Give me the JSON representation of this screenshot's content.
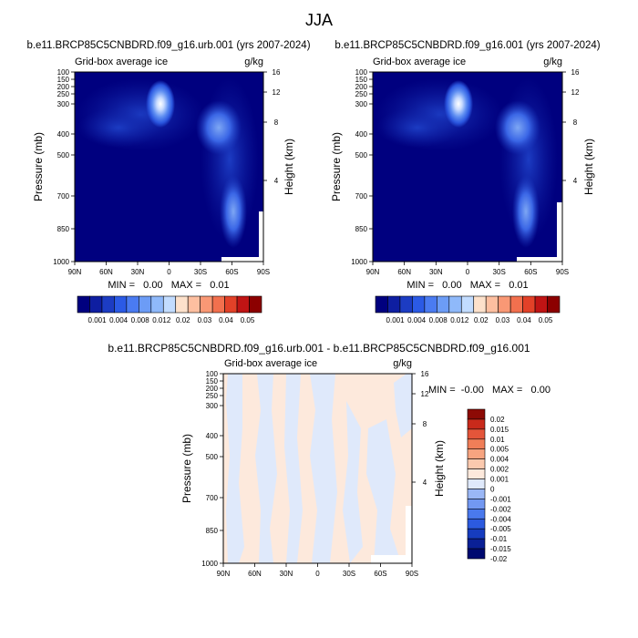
{
  "figure": {
    "title": "JJA"
  },
  "colors": {
    "ice_scale": [
      "#00007f",
      "#0e1ea1",
      "#1c3cc3",
      "#2b5ae5",
      "#4a7bf1",
      "#6c9cf6",
      "#8fb9fa",
      "#c2dcff",
      "#fde1cb",
      "#fdbfa0",
      "#f99875",
      "#f2704e",
      "#e24128",
      "#c01414",
      "#8c0000"
    ],
    "diff_scale": [
      "#000a70",
      "#0a2096",
      "#163cbf",
      "#2c5adf",
      "#4a79ed",
      "#7298f2",
      "#9ab7f6",
      "#dfe9fb",
      "#fde9dc",
      "#fbc9ae",
      "#f7a480",
      "#f07e58",
      "#e4553a",
      "#c92a1b",
      "#8d0a05"
    ],
    "panel_fill": "#00007f"
  },
  "chart_data": [
    {
      "type": "heatmap",
      "title": "b.e11.BRCP85C5CNBDRD.f09_g16.urb.001 (yrs 2007-2024)",
      "left_label": "Grid-box average ice",
      "units": "g/kg",
      "xlabel": "",
      "ylabel": "Pressure (mb)",
      "ylabel_right": "Height (km)",
      "x_ticks": [
        "90N",
        "60N",
        "30N",
        "0",
        "30S",
        "60S",
        "90S"
      ],
      "y_ticks": [
        "100",
        "150",
        "200",
        "250",
        "300",
        "400",
        "500",
        "700",
        "850",
        "1000"
      ],
      "y_right_ticks": [
        "16",
        "12",
        "8",
        "4"
      ],
      "stats": "MIN =   0.00   MAX =   0.01",
      "colorbar_labels": [
        "0.001",
        "0.004",
        "0.008",
        "0.012",
        "0.02",
        "0.03",
        "0.04",
        "0.05"
      ],
      "features": [
        {
          "kind": "max",
          "lat": 6,
          "pressure": 230,
          "value": 0.01
        },
        {
          "kind": "mid",
          "lat": -52,
          "pressure": 450,
          "value": 0.005
        },
        {
          "kind": "mid",
          "lat": -60,
          "pressure": 760,
          "value": 0.004
        }
      ]
    },
    {
      "type": "heatmap",
      "title": "b.e11.BRCP85C5CNBDRD.f09_g16.001 (yrs 2007-2024)",
      "left_label": "Grid-box average ice",
      "units": "g/kg",
      "xlabel": "",
      "ylabel": "Pressure (mb)",
      "ylabel_right": "Height (km)",
      "x_ticks": [
        "90N",
        "60N",
        "30N",
        "0",
        "30S",
        "60S",
        "90S"
      ],
      "y_ticks": [
        "100",
        "150",
        "200",
        "250",
        "300",
        "400",
        "500",
        "700",
        "850",
        "1000"
      ],
      "y_right_ticks": [
        "16",
        "12",
        "8",
        "4"
      ],
      "stats": "MIN =   0.00   MAX =   0.01",
      "colorbar_labels": [
        "0.001",
        "0.004",
        "0.008",
        "0.012",
        "0.02",
        "0.03",
        "0.04",
        "0.05"
      ],
      "features": [
        {
          "kind": "max",
          "lat": 6,
          "pressure": 230,
          "value": 0.01
        },
        {
          "kind": "mid",
          "lat": -52,
          "pressure": 450,
          "value": 0.005
        },
        {
          "kind": "mid",
          "lat": -60,
          "pressure": 760,
          "value": 0.004
        }
      ]
    },
    {
      "type": "heatmap",
      "title": "b.e11.BRCP85C5CNBDRD.f09_g16.urb.001 - b.e11.BRCP85C5CNBDRD.f09_g16.001",
      "left_label": "Grid-box average ice",
      "units": "g/kg",
      "xlabel": "",
      "ylabel": "Pressure (mb)",
      "ylabel_right": "Height (km)",
      "x_ticks": [
        "90N",
        "60N",
        "30N",
        "0",
        "30S",
        "60S",
        "90S"
      ],
      "y_ticks": [
        "100",
        "150",
        "200",
        "250",
        "300",
        "400",
        "500",
        "700",
        "850",
        "1000"
      ],
      "y_right_ticks": [
        "16",
        "12",
        "8",
        "4"
      ],
      "stats": "MIN =  -0.00   MAX =   0.00",
      "colorbar_labels": [
        "0.02",
        "0.015",
        "0.01",
        "0.005",
        "0.004",
        "0.002",
        "0.001",
        "0",
        "-0.001",
        "-0.002",
        "-0.004",
        "-0.005",
        "-0.01",
        "-0.015",
        "-0.02"
      ]
    }
  ]
}
